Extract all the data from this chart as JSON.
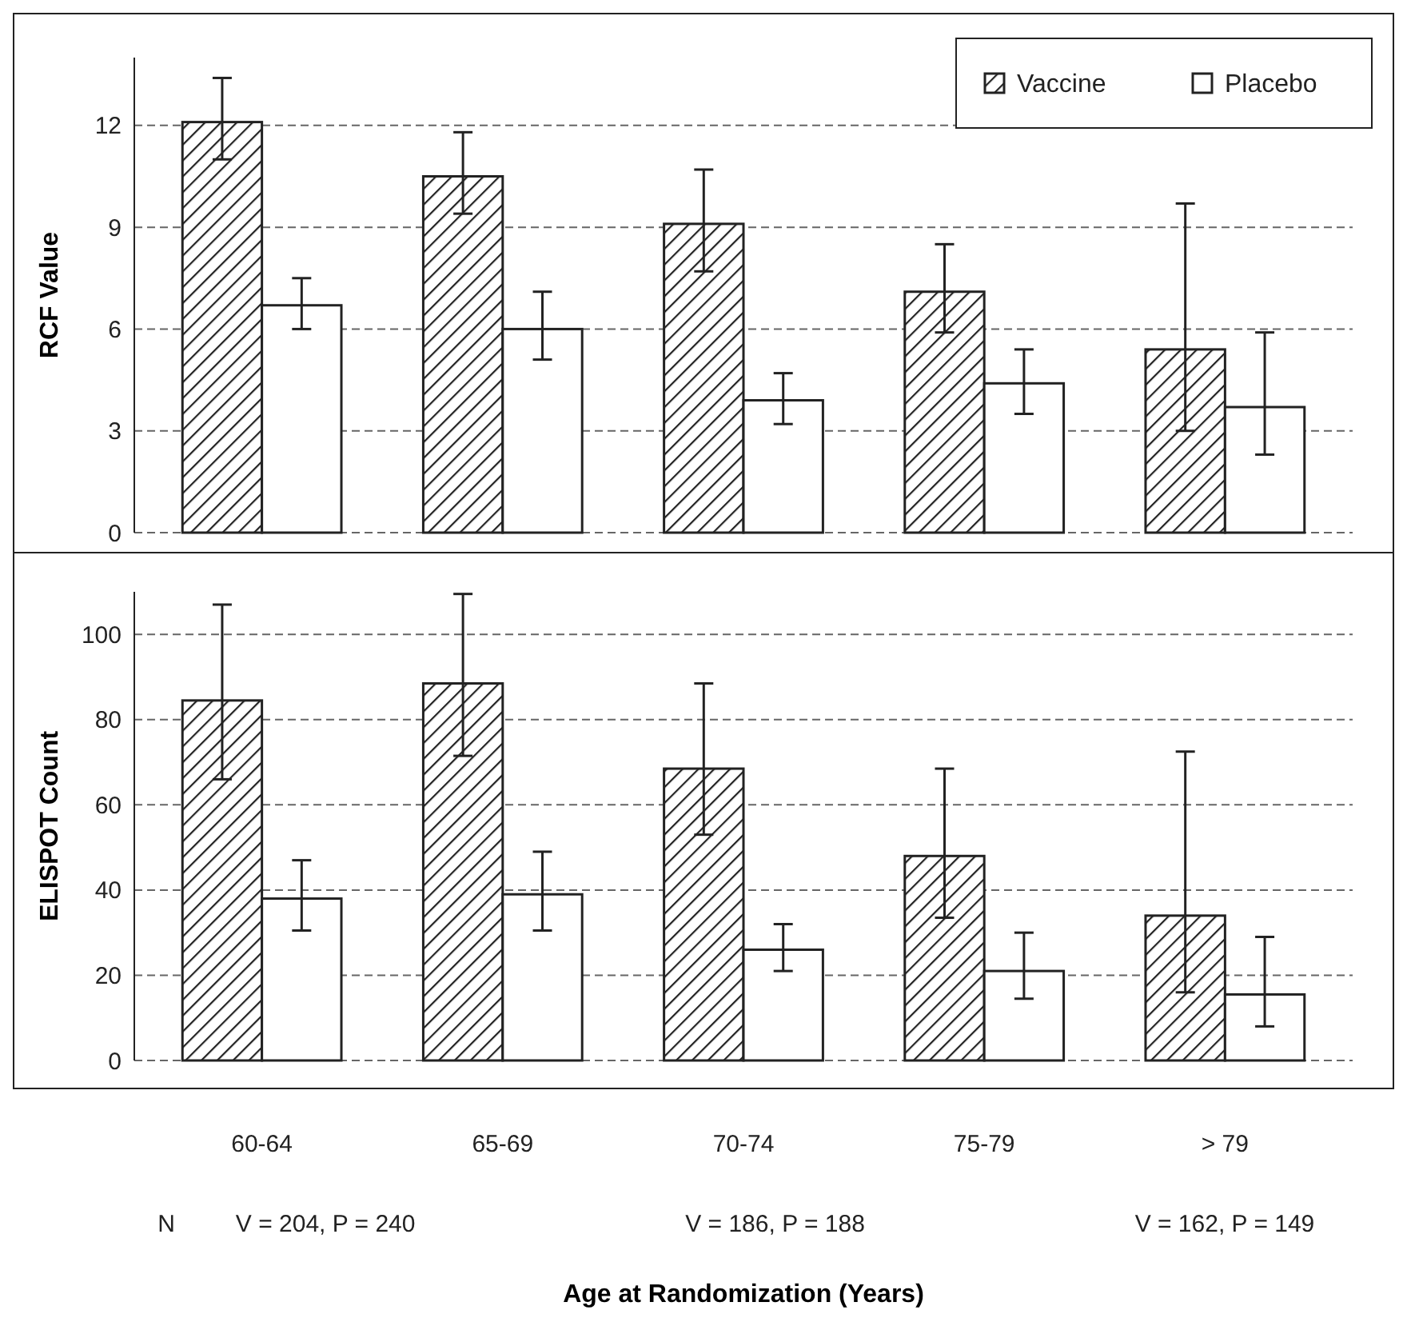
{
  "chart_data": [
    {
      "type": "bar",
      "ylabel": "RCF Value",
      "categories": [
        null,
        null,
        null,
        null,
        null
      ],
      "ylim": [
        0,
        14
      ],
      "yticks": [
        0,
        3,
        6,
        9,
        12
      ],
      "grid": "y",
      "legend": "top right",
      "tick_labels": "y",
      "series": [
        {
          "name": "Vaccine",
          "color": "#222222",
          "values": [
            12.1,
            10.5,
            9.1,
            7.1,
            5.4
          ],
          "errors": [
            [
              11.0,
              13.4
            ],
            [
              9.4,
              11.8
            ],
            [
              7.7,
              10.7
            ],
            [
              5.9,
              8.5
            ],
            [
              3.0,
              9.7
            ]
          ]
        },
        {
          "name": "Placebo",
          "color": "#ffffff",
          "values": [
            6.7,
            6.0,
            3.9,
            4.4,
            3.7
          ],
          "errors": [
            [
              6.0,
              7.5
            ],
            [
              5.1,
              7.1
            ],
            [
              3.2,
              4.7
            ],
            [
              3.5,
              5.4
            ],
            [
              2.3,
              5.9
            ]
          ]
        }
      ]
    },
    {
      "type": "bar",
      "ylabel": "ELISPOT Count",
      "xlabel": "Age at Randomization (Years)",
      "categories": [
        "60-64",
        "65-69",
        "70-74",
        "75-79",
        "> 79"
      ],
      "ylim": [
        0,
        110
      ],
      "yticks": [
        0,
        20,
        40,
        60,
        80,
        100
      ],
      "grid": "y",
      "annotations": [
        "N",
        "V = 204, P = 240",
        "V = 186, P = 188",
        "V = 162, P = 149"
      ],
      "series": [
        {
          "color": "#222222",
          "values": [
            84.5,
            88.5,
            68.5,
            48,
            34
          ],
          "errors": [
            [
              66,
              107
            ],
            [
              71.5,
              109.5
            ],
            [
              53,
              88.5
            ],
            [
              33.5,
              68.5
            ],
            [
              16,
              72.5
            ]
          ]
        },
        {
          "color": "#ffffff",
          "values": [
            38,
            39,
            26,
            21,
            15.5
          ],
          "errors": [
            [
              30.5,
              47
            ],
            [
              30.5,
              49
            ],
            [
              21,
              32
            ],
            [
              14.5,
              30
            ],
            [
              8,
              29
            ]
          ]
        }
      ]
    }
  ]
}
